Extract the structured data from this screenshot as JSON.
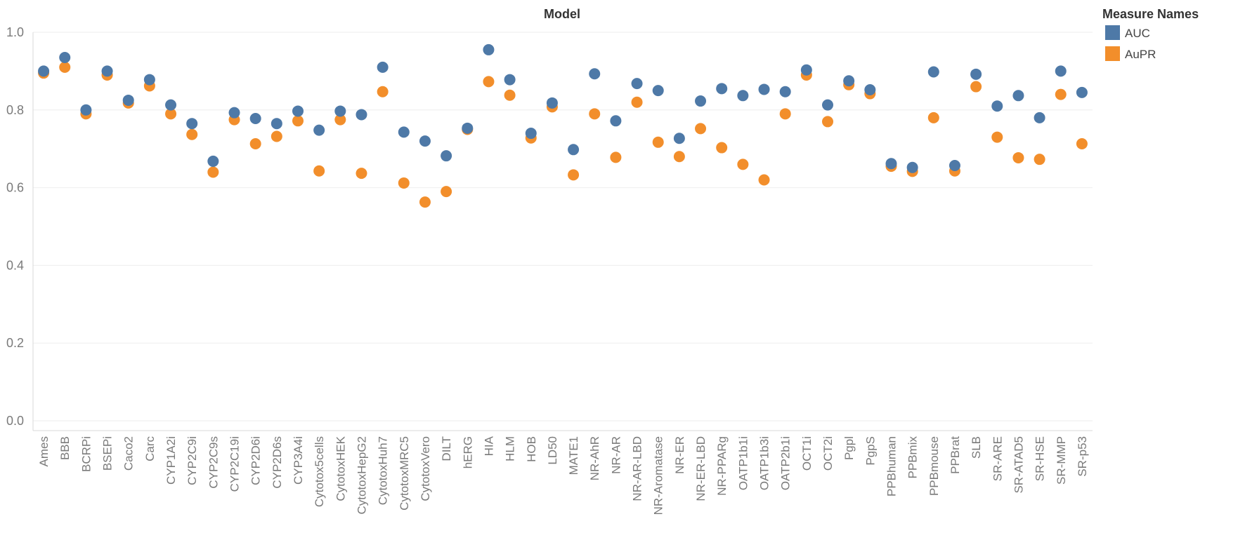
{
  "chart_data": {
    "type": "scatter",
    "title": "Model",
    "xlabel": "",
    "ylabel": "",
    "ylim": [
      0,
      1
    ],
    "yticks": [
      "0.0",
      "0.2",
      "0.4",
      "0.6",
      "0.8",
      "1.0"
    ],
    "grid": true,
    "legend": {
      "title": "Measure Names",
      "placement": "top-right"
    },
    "categories": [
      "Ames",
      "BBB",
      "BCRPi",
      "BSEPi",
      "Caco2",
      "Carc",
      "CYP1A2i",
      "CYP2C9i",
      "CYP2C9s",
      "CYP2C19i",
      "CYP2D6i",
      "CYP2D6s",
      "CYP3A4i",
      "Cytotox5cells",
      "CytotoxHEK",
      "CytotoxHepG2",
      "CytotoxHuh7",
      "CytotoxMRC5",
      "CytotoxVero",
      "DILT",
      "hERG",
      "HIA",
      "HLM",
      "HOB",
      "LD50",
      "MATE1",
      "NR-AhR",
      "NR-AR",
      "NR-AR-LBD",
      "NR-Aromatase",
      "NR-ER",
      "NR-ER-LBD",
      "NR-PPARg",
      "OATP1b1i",
      "OATP1b3i",
      "OATP2b1i",
      "OCT1i",
      "OCT2i",
      "Pgpl",
      "PgpS",
      "PPBhuman",
      "PPBmix",
      "PPBmouse",
      "PPBrat",
      "SLB",
      "SR-ARE",
      "SR-ATAD5",
      "SR-HSE",
      "SR-MMP",
      "SR-p53"
    ],
    "series": [
      {
        "name": "AUC",
        "color": "#4e79a7",
        "values": [
          0.9,
          0.935,
          0.8,
          0.9,
          0.825,
          0.878,
          0.813,
          0.765,
          0.668,
          0.793,
          0.778,
          0.765,
          0.797,
          0.748,
          0.797,
          0.788,
          0.91,
          0.743,
          0.72,
          0.682,
          0.753,
          0.955,
          0.878,
          0.74,
          0.818,
          0.698,
          0.893,
          0.772,
          0.868,
          0.85,
          0.727,
          0.823,
          0.855,
          0.837,
          0.853,
          0.847,
          0.903,
          0.813,
          0.875,
          0.852,
          0.662,
          0.652,
          0.898,
          0.657,
          0.892,
          0.81,
          0.837,
          0.78,
          0.9,
          0.845
        ]
      },
      {
        "name": "AuPR",
        "color": "#f28e2b",
        "values": [
          0.895,
          0.91,
          0.79,
          0.89,
          0.818,
          0.862,
          0.79,
          0.737,
          0.64,
          0.775,
          0.713,
          0.732,
          0.772,
          0.643,
          0.775,
          0.637,
          0.847,
          0.612,
          0.563,
          0.59,
          0.75,
          0.873,
          0.838,
          0.728,
          0.808,
          0.633,
          0.79,
          0.678,
          0.82,
          0.717,
          0.68,
          0.752,
          0.703,
          0.66,
          0.62,
          0.79,
          0.89,
          0.77,
          0.865,
          0.842,
          0.655,
          0.642,
          0.78,
          0.643,
          0.86,
          0.73,
          0.677,
          0.673,
          0.84,
          0.713
        ]
      }
    ]
  }
}
